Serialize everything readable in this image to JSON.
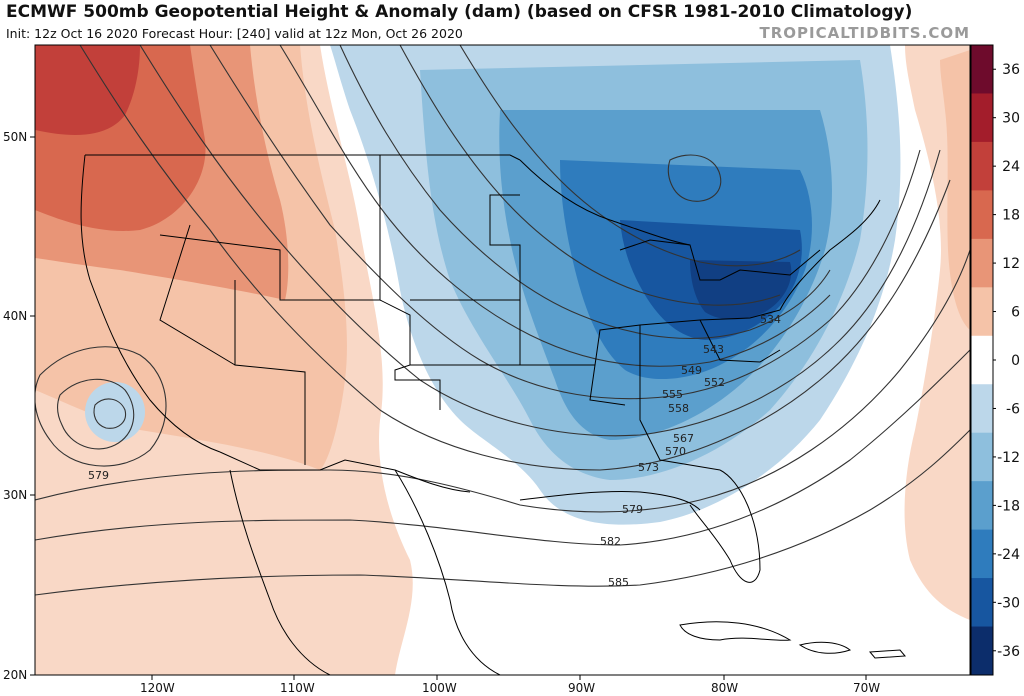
{
  "header": {
    "title": "ECMWF 500mb Geopotential Height & Anomaly (dam) (based on CFSR 1981-2010 Climatology)",
    "subtitle": "Init: 12z Oct 16 2020   Forecast Hour: [240]   valid at 12z Mon, Oct 26 2020",
    "credit": "TROPICALTIDBITS.COM"
  },
  "axes": {
    "lat_labels": [
      "50N",
      "40N",
      "30N",
      "20N"
    ],
    "lon_labels": [
      "120W",
      "110W",
      "100W",
      "90W",
      "80W",
      "70W"
    ]
  },
  "contour_labels": [
    "534",
    "543",
    "549",
    "552",
    "555",
    "558",
    "567",
    "570",
    "573",
    "579",
    "579",
    "582",
    "585"
  ],
  "colorbar": {
    "ticks": [
      "36",
      "30",
      "24",
      "18",
      "12",
      "6",
      "0",
      "-6",
      "-12",
      "-18",
      "-24",
      "-30",
      "-36"
    ],
    "colors": [
      "#6e0b2c",
      "#a31d2b",
      "#c2403a",
      "#d8684f",
      "#e89577",
      "#f5c3a8",
      "#ffffff",
      "#bcd7ea",
      "#8ebfdd",
      "#5b9fcd",
      "#2f7cbd",
      "#1756a0",
      "#0c2d6b"
    ]
  }
}
